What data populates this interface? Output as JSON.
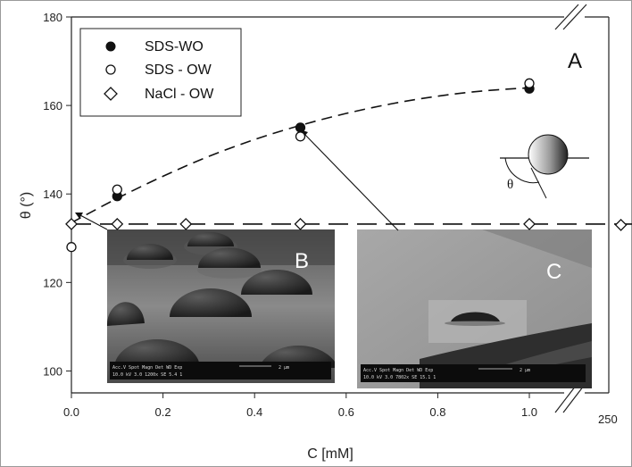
{
  "chart_data": {
    "type": "scatter",
    "xlabel": "C [mM]",
    "ylabel": "θ (°)",
    "xlim": [
      0.0,
      1.25
    ],
    "ylim": [
      90,
      180
    ],
    "x_ticks": [
      "0.0",
      "0.2",
      "0.4",
      "0.6",
      "0.8",
      "1.0"
    ],
    "y_ticks": [
      "100",
      "120",
      "140",
      "160",
      "180"
    ],
    "x_break_label": "250",
    "legend_position": "top-left",
    "grid": false,
    "series": [
      {
        "name": "SDS-WO",
        "marker": "filled-circle",
        "points": [
          [
            0.1,
            139.5
          ],
          [
            0.5,
            155.0
          ],
          [
            1.0,
            163.8
          ]
        ]
      },
      {
        "name": "SDS - OW",
        "marker": "open-circle",
        "points": [
          [
            0.0,
            128.0
          ],
          [
            0.1,
            141.0
          ],
          [
            0.5,
            153.0
          ],
          [
            1.0,
            165.0
          ]
        ]
      },
      {
        "name": "NaCl - OW",
        "marker": "open-diamond",
        "points": [
          [
            0.0,
            133.2
          ],
          [
            0.1,
            133.2
          ],
          [
            0.25,
            133.2
          ],
          [
            0.5,
            133.2
          ],
          [
            1.0,
            133.2
          ],
          [
            1.2,
            133.0
          ]
        ]
      }
    ],
    "fit_curve": {
      "style": "dashed",
      "points": [
        [
          0.0,
          133.5
        ],
        [
          0.1,
          139.0
        ],
        [
          0.2,
          144.0
        ],
        [
          0.3,
          148.5
        ],
        [
          0.4,
          152.3
        ],
        [
          0.5,
          155.5
        ],
        [
          0.6,
          158.2
        ],
        [
          0.7,
          160.4
        ],
        [
          0.8,
          162.1
        ],
        [
          0.9,
          163.3
        ],
        [
          1.0,
          164.0
        ]
      ]
    },
    "reference_line": {
      "style": "dashed",
      "y": 133.2,
      "x_range": [
        0.0,
        1.25
      ]
    },
    "annotations": {
      "panel_a": "A",
      "panel_b": "B",
      "panel_c": "C",
      "angle_symbol": "θ"
    }
  },
  "inset_b": {
    "scale_bar": "2 μm",
    "meta_line_1": "Acc.V  Spot Magn   Det  WD  Exp",
    "meta_line_2": "10.0 kV 3.0  1200x   SE   5.4  1"
  },
  "inset_c": {
    "scale_bar": "2 μm",
    "meta_line_1": "Acc.V  Spot Magn   Det  WD  Exp",
    "meta_line_2": "10.0 kV 3.0  7802x   SE   15.1  1"
  }
}
